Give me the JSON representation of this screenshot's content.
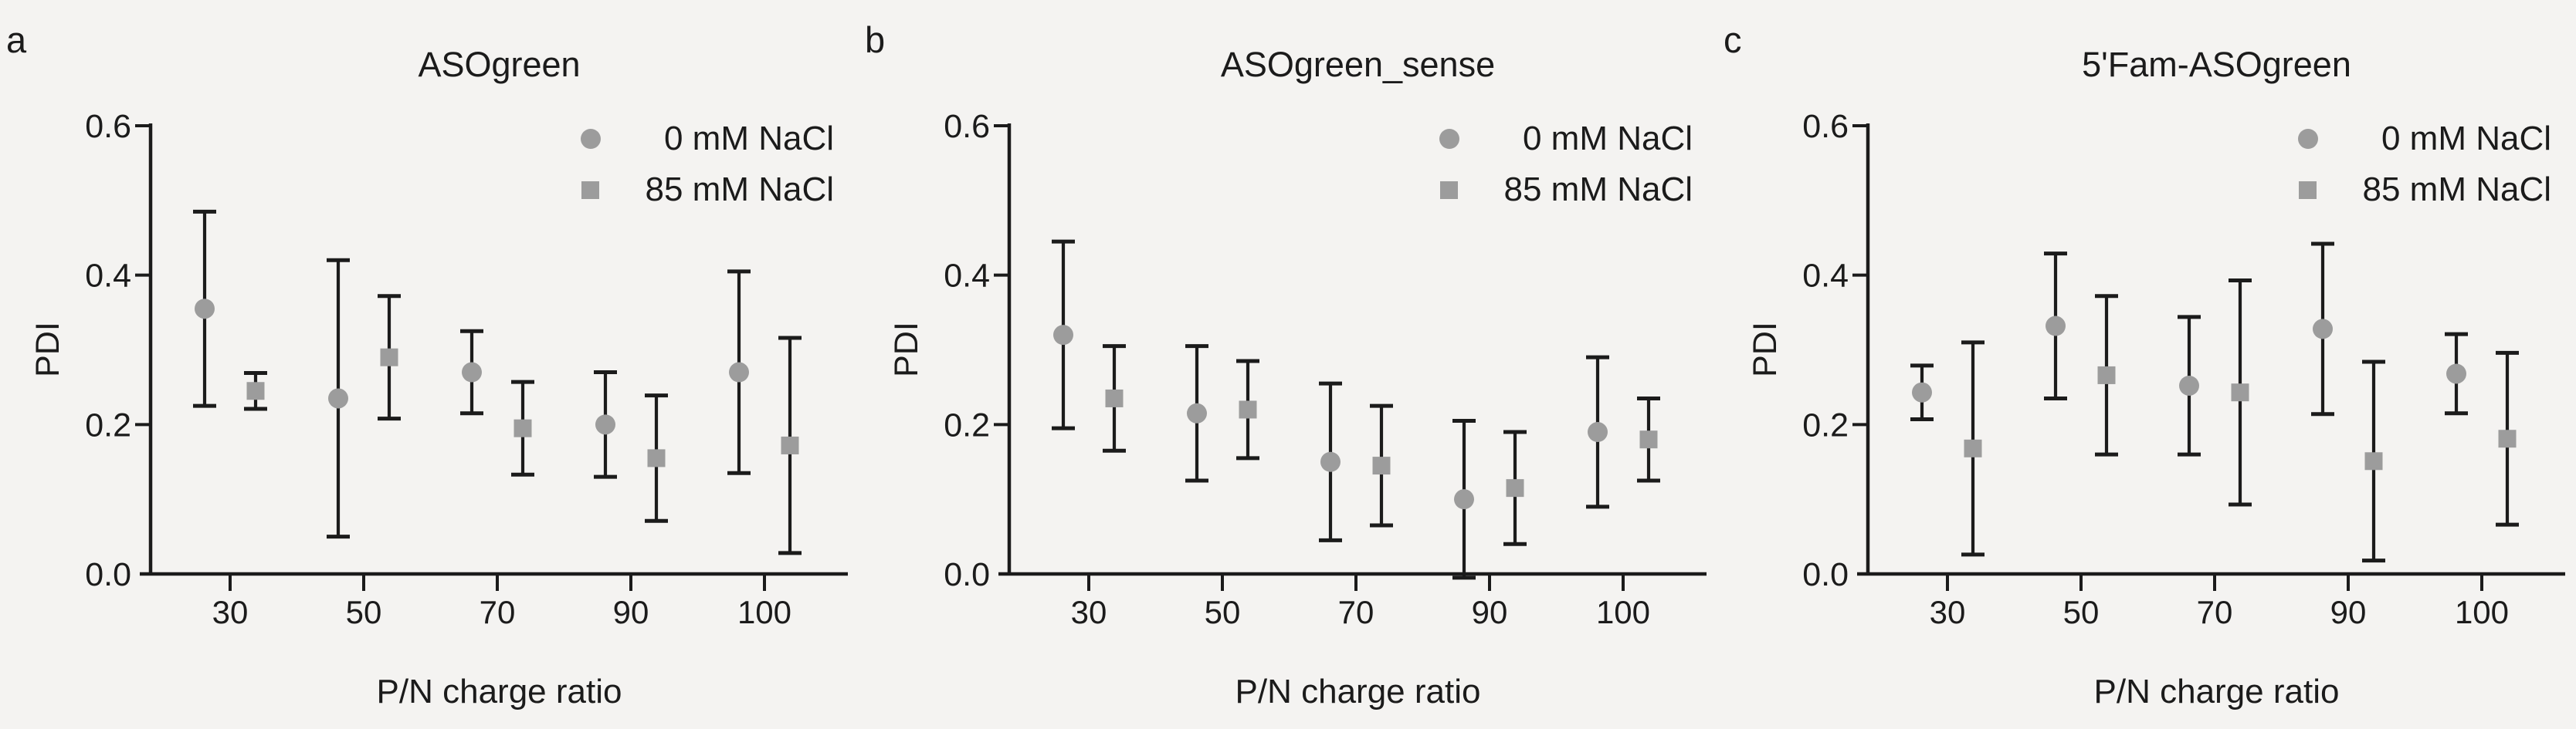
{
  "figure": {
    "background_color": "#f4f3f1",
    "text_color": "#1b1b1b",
    "marker_color": "#9c9c9c",
    "errorbar_color": "#1b1b1b",
    "legend": [
      {
        "marker": "circle",
        "label": "0 mM NaCl"
      },
      {
        "marker": "square",
        "label": "85 mM NaCl"
      }
    ]
  },
  "chart_data": [
    {
      "type": "scatter",
      "panel_letter": "a",
      "title": "ASOgreen",
      "xlabel": "P/N charge ratio",
      "ylabel": "PDI",
      "ylim": [
        0.0,
        0.6
      ],
      "yticks": [
        0.0,
        0.2,
        0.4,
        0.6
      ],
      "ytick_labels": [
        "0.0",
        "0.2",
        "0.4",
        "0.6"
      ],
      "categories": [
        30,
        50,
        70,
        90,
        100
      ],
      "xtick_labels": [
        "30",
        "50",
        "70",
        "90",
        "100"
      ],
      "grid": false,
      "legend_position": "top-right",
      "series": [
        {
          "name": "0 mM NaCl",
          "marker": "circle",
          "y": [
            0.355,
            0.235,
            0.27,
            0.2,
            0.27
          ],
          "err": [
            0.13,
            0.185,
            0.055,
            0.07,
            0.135
          ]
        },
        {
          "name": "85 mM NaCl",
          "marker": "square",
          "y": [
            0.245,
            0.29,
            0.195,
            0.155,
            0.172
          ],
          "err": [
            0.024,
            0.082,
            0.062,
            0.084,
            0.144
          ]
        }
      ]
    },
    {
      "type": "scatter",
      "panel_letter": "b",
      "title": "ASOgreen_sense",
      "xlabel": "P/N charge ratio",
      "ylabel": "PDI",
      "ylim": [
        0.0,
        0.6
      ],
      "yticks": [
        0.0,
        0.2,
        0.4,
        0.6
      ],
      "ytick_labels": [
        "0.0",
        "0.2",
        "0.4",
        "0.6"
      ],
      "categories": [
        30,
        50,
        70,
        90,
        100
      ],
      "xtick_labels": [
        "30",
        "50",
        "70",
        "90",
        "100"
      ],
      "grid": false,
      "legend_position": "top-right",
      "series": [
        {
          "name": "0 mM NaCl",
          "marker": "circle",
          "y": [
            0.32,
            0.215,
            0.15,
            0.1,
            0.19
          ],
          "err": [
            0.125,
            0.09,
            0.105,
            0.105,
            0.1
          ]
        },
        {
          "name": "85 mM NaCl",
          "marker": "square",
          "y": [
            0.235,
            0.22,
            0.145,
            0.115,
            0.18
          ],
          "err": [
            0.07,
            0.065,
            0.08,
            0.075,
            0.055
          ]
        }
      ]
    },
    {
      "type": "scatter",
      "panel_letter": "c",
      "title": "5'Fam-ASOgreen",
      "xlabel": "P/N charge ratio",
      "ylabel": "PDI",
      "ylim": [
        0.0,
        0.6
      ],
      "yticks": [
        0.0,
        0.2,
        0.4,
        0.6
      ],
      "ytick_labels": [
        "0.0",
        "0.2",
        "0.4",
        "0.6"
      ],
      "categories": [
        30,
        50,
        70,
        90,
        100
      ],
      "xtick_labels": [
        "30",
        "50",
        "70",
        "90",
        "100"
      ],
      "grid": false,
      "legend_position": "top-right",
      "series": [
        {
          "name": "0 mM NaCl",
          "marker": "circle",
          "y": [
            0.243,
            0.332,
            0.252,
            0.328,
            0.268
          ],
          "err": [
            0.036,
            0.097,
            0.092,
            0.114,
            0.053
          ]
        },
        {
          "name": "85 mM NaCl",
          "marker": "square",
          "y": [
            0.168,
            0.266,
            0.243,
            0.151,
            0.181
          ],
          "err": [
            0.142,
            0.106,
            0.15,
            0.133,
            0.115
          ]
        }
      ]
    }
  ]
}
